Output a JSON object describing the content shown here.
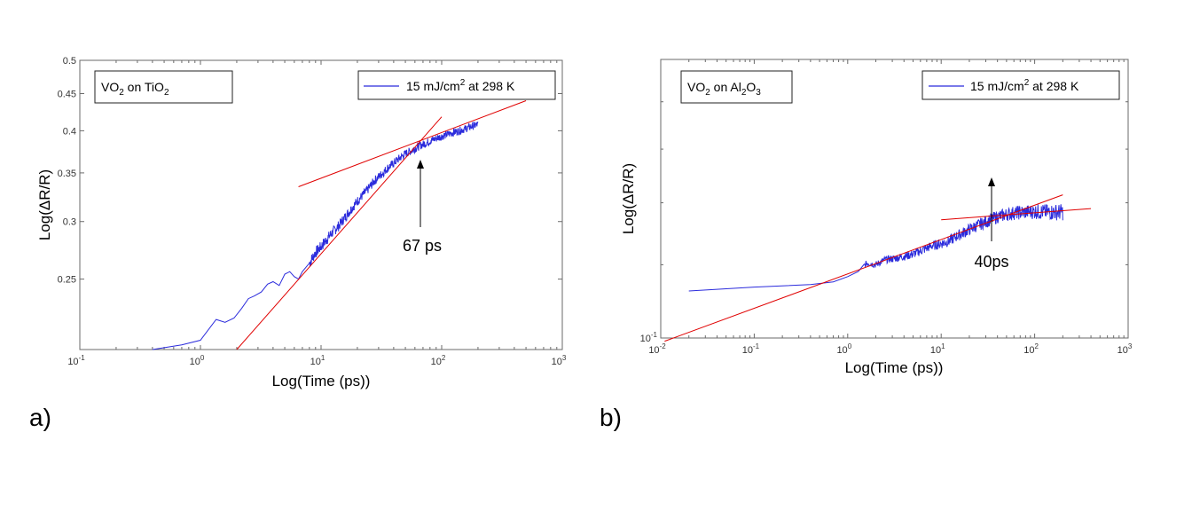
{
  "chart_data": [
    {
      "type": "line",
      "panel_label": "a)",
      "title": "",
      "xlabel": "Log(Time (ps))",
      "ylabel": "Log(ΔR/R)",
      "xscale": "log",
      "yscale": "log",
      "xlim": [
        0.1,
        1000
      ],
      "ylim": [
        0.2,
        0.5
      ],
      "x_ticks": [
        0.1,
        1,
        10,
        100,
        1000
      ],
      "x_tick_labels": [
        [
          "10",
          "-1"
        ],
        [
          "10",
          "0"
        ],
        [
          "10",
          "1"
        ],
        [
          "10",
          "2"
        ],
        [
          "10",
          "3"
        ]
      ],
      "y_ticks": [
        0.25,
        0.3,
        0.35,
        0.4,
        0.45,
        0.5
      ],
      "y_tick_labels": [
        "0.25",
        "0.3",
        "0.35",
        "0.4",
        "0.45",
        "0.5"
      ],
      "sample_box": {
        "main": "VO",
        "sub1": "2",
        "mid": " on TiO",
        "sub2": "2"
      },
      "legend": {
        "pre": "15 mJ/cm",
        "sup": "2",
        "post": " at 298 K"
      },
      "series": [
        {
          "name": "15 mJ/cm2 at 298 K",
          "color": "#2b2bdc",
          "x": [
            0.4,
            0.7,
            1.0,
            1.35,
            1.6,
            1.9,
            2.2,
            2.5,
            2.8,
            3.2,
            3.6,
            4.0,
            4.5,
            5.0,
            5.5,
            6.0,
            6.5,
            7.0,
            8,
            9,
            10,
            12,
            14,
            16,
            18,
            20,
            24,
            28,
            32,
            36,
            40,
            45,
            50,
            55,
            60,
            67,
            75,
            85,
            100,
            120,
            140,
            160,
            180,
            200
          ],
          "y": [
            0.2,
            0.203,
            0.206,
            0.22,
            0.218,
            0.221,
            0.228,
            0.235,
            0.237,
            0.24,
            0.246,
            0.248,
            0.245,
            0.254,
            0.256,
            0.252,
            0.25,
            0.256,
            0.263,
            0.272,
            0.277,
            0.288,
            0.296,
            0.305,
            0.313,
            0.32,
            0.331,
            0.342,
            0.349,
            0.356,
            0.361,
            0.367,
            0.372,
            0.375,
            0.378,
            0.382,
            0.385,
            0.389,
            0.393,
            0.397,
            0.4,
            0.403,
            0.406,
            0.408
          ],
          "noise": 0.005
        }
      ],
      "fit_lines": [
        {
          "color": "#e00000",
          "x": [
            2,
            100
          ],
          "y": [
            0.2,
            0.418
          ]
        },
        {
          "color": "#e00000",
          "x": [
            6.5,
            500
          ],
          "y": [
            0.335,
            0.44
          ]
        }
      ],
      "annotation": {
        "text": "67 ps",
        "x": 67,
        "y": 0.382
      }
    },
    {
      "type": "line",
      "panel_label": "b)",
      "title": "",
      "xlabel": "Log(Time (ps))",
      "ylabel": "Log(ΔR/R)",
      "xscale": "log",
      "yscale": "log",
      "xlim": [
        0.01,
        1000
      ],
      "ylim": [
        0.1,
        0.2
      ],
      "x_ticks": [
        0.01,
        0.1,
        1,
        10,
        100,
        1000
      ],
      "x_tick_labels": [
        [
          "10",
          "-2"
        ],
        [
          "10",
          "-1"
        ],
        [
          "10",
          "0"
        ],
        [
          "10",
          "1"
        ],
        [
          "10",
          "2"
        ],
        [
          "10",
          "3"
        ]
      ],
      "y_ticks": [
        0.1
      ],
      "y_tick_labels": [
        [
          "10",
          "-1"
        ]
      ],
      "sample_box": {
        "main": "VO",
        "sub1": "2",
        "mid": " on Al",
        "sub2": "2",
        "mid2": "O",
        "sub3": "3"
      },
      "legend": {
        "pre": "15 mJ/cm",
        "sup": "2",
        "post": " at  298 K"
      },
      "series": [
        {
          "name": "15 mJ/cm2 at 298 K",
          "color": "#2b2bdc",
          "x": [
            0.02,
            0.1,
            0.4,
            0.7,
            1.0,
            1.3,
            1.6,
            2.0,
            2.5,
            3.0,
            4.0,
            5.0,
            6.0,
            8.0,
            10,
            12,
            15,
            20,
            25,
            30,
            35,
            40,
            50,
            60,
            80,
            100,
            150,
            200
          ],
          "y": [
            0.1124,
            0.1135,
            0.1142,
            0.115,
            0.1165,
            0.118,
            0.1205,
            0.12,
            0.1215,
            0.1218,
            0.1225,
            0.1232,
            0.1242,
            0.1258,
            0.1265,
            0.1272,
            0.129,
            0.131,
            0.1325,
            0.1335,
            0.1345,
            0.1352,
            0.136,
            0.1365,
            0.1368,
            0.137,
            0.1368,
            0.1368
          ],
          "noise": 0.0022
        }
      ],
      "fit_lines": [
        {
          "color": "#e00000",
          "x": [
            0.011,
            200
          ],
          "y": [
            0.0992,
            0.1428
          ]
        },
        {
          "color": "#e00000",
          "x": [
            10,
            400
          ],
          "y": [
            0.1342,
            0.138
          ]
        }
      ],
      "annotation": {
        "text": "40ps",
        "x": 40,
        "y": 0.1352
      }
    }
  ]
}
